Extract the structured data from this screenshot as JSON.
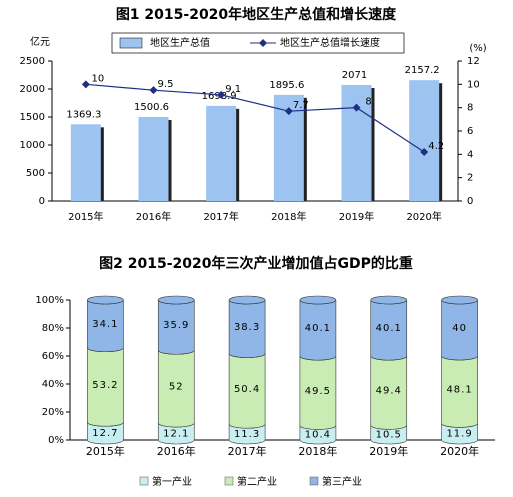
{
  "chart_data": [
    {
      "type": "bar_line",
      "title": "图1 2015-2020年地区生产总值和增长速度",
      "y_label": "亿元",
      "y2_label": "(%)",
      "categories": [
        "2015年",
        "2016年",
        "2017年",
        "2018年",
        "2019年",
        "2020年"
      ],
      "series": [
        {
          "name": "地区生产总值",
          "type": "bar",
          "color": "#9dc3f0",
          "values": [
            1369.3,
            1500.6,
            1698.9,
            1895.6,
            2071,
            2157.2
          ]
        },
        {
          "name": "地区生产总值增长速度",
          "type": "line",
          "axis": "y2",
          "color": "#1f2f86",
          "values": [
            10,
            9.5,
            9.1,
            7.7,
            8,
            4.2
          ]
        }
      ],
      "ylim": [
        0,
        2500
      ],
      "yticks": [
        0,
        500,
        1000,
        1500,
        2000,
        2500
      ],
      "y2lim": [
        0,
        12
      ],
      "y2ticks": [
        0,
        2,
        4,
        6,
        8,
        10,
        12
      ]
    },
    {
      "type": "stacked_bar",
      "title": "图2 2015-2020年三次产业增加值占GDP的比重",
      "categories": [
        "2015年",
        "2016年",
        "2017年",
        "2018年",
        "2019年",
        "2020年"
      ],
      "series": [
        {
          "name": "第一产业",
          "color": "#c8eef2",
          "values": [
            12.7,
            12.1,
            11.3,
            10.4,
            10.5,
            11.9
          ]
        },
        {
          "name": "第二产业",
          "color": "#c9ebb4",
          "values": [
            53.2,
            52,
            50.4,
            49.5,
            49.4,
            48.1
          ]
        },
        {
          "name": "第三产业",
          "color": "#8fb6e6",
          "values": [
            34.1,
            35.9,
            38.3,
            40.1,
            40.1,
            40
          ]
        }
      ],
      "ylim": [
        0,
        100
      ],
      "yticks": [
        {
          "value": 0,
          "label": "0%"
        },
        {
          "value": 20,
          "label": "20%"
        },
        {
          "value": 40,
          "label": "40%"
        },
        {
          "value": 60,
          "label": "60%"
        },
        {
          "value": 80,
          "label": "80%"
        },
        {
          "value": 100,
          "label": "100%"
        }
      ]
    }
  ]
}
